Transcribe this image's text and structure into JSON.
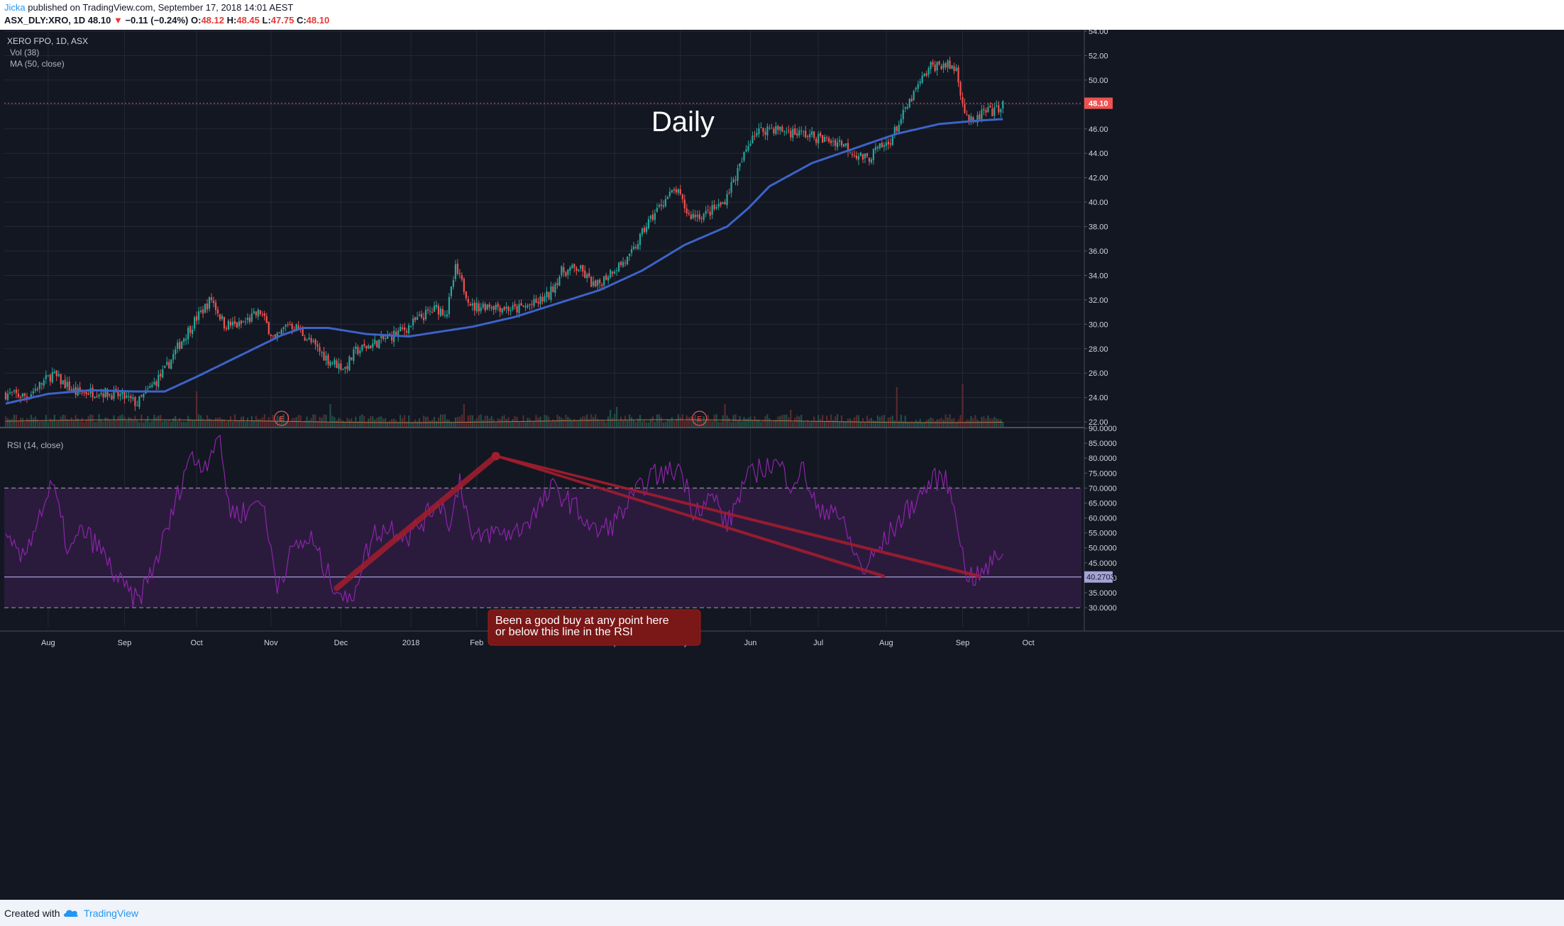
{
  "header": {
    "author": "Jicka",
    "published": "published on TradingView.com, September 17, 2018 14:01 AEST",
    "symbol": "ASX_DLY:XRO, 1D",
    "last": "48.10",
    "change": "−0.11 (−0.24%)",
    "open_label": "O:",
    "open": "48.12",
    "high_label": "H:",
    "high": "48.45",
    "low_label": "L:",
    "low": "47.75",
    "close_label": "C:",
    "close": "48.10"
  },
  "legend": {
    "title": "XERO FPO, 1D, ASX",
    "vol": "Vol (38)",
    "ma": "MA (50, close)",
    "rsi": "RSI (14, close)"
  },
  "annotation": {
    "big_label": "Daily",
    "callout_line1": "Been a good buy at any point here",
    "callout_line2": "or below this line in the RSI"
  },
  "footer": {
    "created_with": "Created with",
    "brand": "TradingView"
  },
  "colors": {
    "background": "#131722",
    "up": "#26a69a",
    "down": "#ef5350",
    "ma": "#3d63c7",
    "rsi": "#8e24aa",
    "rsi_band": "#2a1b3d",
    "callout": "#8b1a1a"
  },
  "chart_data": {
    "type": "candlestick",
    "price_axis": {
      "ticks": [
        "54.00",
        "52.00",
        "50.00",
        "48.00",
        "46.00",
        "44.00",
        "42.00",
        "40.00",
        "38.00",
        "36.00",
        "34.00",
        "32.00",
        "30.00",
        "28.00",
        "26.00",
        "24.00",
        "22.00"
      ],
      "ylim": [
        21.6,
        54.0
      ],
      "last_price_label": "48.10"
    },
    "rsi_axis": {
      "ticks": [
        "90.0000",
        "85.0000",
        "80.0000",
        "75.0000",
        "70.0000",
        "65.0000",
        "60.0000",
        "55.0000",
        "50.0000",
        "45.0000",
        "40.0000",
        "35.0000",
        "30.0000"
      ],
      "ylim": [
        29.3,
        90.0
      ],
      "last_value_label": "40.2703",
      "overbought": 70,
      "oversold": 30,
      "annotation_level": 40.27
    },
    "time_axis": [
      "Aug",
      "Sep",
      "Oct",
      "Nov",
      "Dec",
      "2018",
      "Feb",
      "Mar",
      "Apr",
      "May",
      "Jun",
      "Jul",
      "Aug",
      "Sep",
      "Oct"
    ],
    "earnings_markers": [
      {
        "label": "E",
        "month": "Nov"
      },
      {
        "label": "E",
        "month": "May"
      }
    ],
    "price_keypoints": [
      [
        0,
        24.3
      ],
      [
        10,
        24.1
      ],
      [
        22,
        25.9
      ],
      [
        33,
        24.4
      ],
      [
        44,
        24.5
      ],
      [
        55,
        24.1
      ],
      [
        62,
        23.5
      ],
      [
        75,
        26.2
      ],
      [
        83,
        28.7
      ],
      [
        90,
        30.5
      ],
      [
        97,
        32.1
      ],
      [
        103,
        30.0
      ],
      [
        110,
        29.9
      ],
      [
        120,
        31.0
      ],
      [
        127,
        28.6
      ],
      [
        133,
        30.1
      ],
      [
        138,
        29.6
      ],
      [
        145,
        28.3
      ],
      [
        152,
        27.1
      ],
      [
        160,
        26.4
      ],
      [
        165,
        27.8
      ],
      [
        172,
        28.3
      ],
      [
        180,
        28.9
      ],
      [
        188,
        29.6
      ],
      [
        196,
        30.6
      ],
      [
        203,
        31.3
      ],
      [
        208,
        31.0
      ],
      [
        212,
        34.5
      ],
      [
        220,
        31.4
      ],
      [
        228,
        31.6
      ],
      [
        240,
        31.2
      ],
      [
        250,
        31.7
      ],
      [
        256,
        32.4
      ],
      [
        262,
        34.3
      ],
      [
        270,
        34.6
      ],
      [
        278,
        33.0
      ],
      [
        286,
        34.5
      ],
      [
        294,
        35.4
      ],
      [
        302,
        38.1
      ],
      [
        310,
        40.1
      ],
      [
        316,
        41.0
      ],
      [
        322,
        38.9
      ],
      [
        330,
        39.0
      ],
      [
        338,
        39.9
      ],
      [
        346,
        42.9
      ],
      [
        352,
        45.6
      ],
      [
        360,
        46.1
      ],
      [
        368,
        45.8
      ],
      [
        376,
        45.6
      ],
      [
        386,
        45.1
      ],
      [
        394,
        44.9
      ],
      [
        400,
        44.0
      ],
      [
        406,
        43.5
      ],
      [
        410,
        44.2
      ],
      [
        416,
        44.8
      ],
      [
        422,
        46.8
      ],
      [
        430,
        49.5
      ],
      [
        436,
        51.1
      ],
      [
        442,
        51.3
      ],
      [
        448,
        50.9
      ],
      [
        452,
        47.4
      ],
      [
        456,
        46.3
      ],
      [
        460,
        47.3
      ],
      [
        466,
        47.4
      ],
      [
        470,
        48.1
      ]
    ],
    "ma50_keypoints": [
      [
        0,
        23.5
      ],
      [
        20,
        24.3
      ],
      [
        40,
        24.6
      ],
      [
        60,
        24.5
      ],
      [
        75,
        24.5
      ],
      [
        90,
        25.7
      ],
      [
        110,
        27.4
      ],
      [
        130,
        29.1
      ],
      [
        140,
        29.7
      ],
      [
        152,
        29.7
      ],
      [
        170,
        29.2
      ],
      [
        190,
        29.0
      ],
      [
        205,
        29.4
      ],
      [
        220,
        29.8
      ],
      [
        240,
        30.6
      ],
      [
        260,
        31.7
      ],
      [
        280,
        32.8
      ],
      [
        300,
        34.4
      ],
      [
        320,
        36.5
      ],
      [
        340,
        38.0
      ],
      [
        350,
        39.5
      ],
      [
        360,
        41.3
      ],
      [
        380,
        43.2
      ],
      [
        400,
        44.4
      ],
      [
        420,
        45.6
      ],
      [
        440,
        46.4
      ],
      [
        460,
        46.7
      ],
      [
        470,
        46.8
      ]
    ],
    "rsi_keypoints": [
      [
        0,
        52
      ],
      [
        8,
        46
      ],
      [
        14,
        58
      ],
      [
        22,
        71
      ],
      [
        30,
        48
      ],
      [
        36,
        56
      ],
      [
        44,
        50
      ],
      [
        54,
        38
      ],
      [
        62,
        32
      ],
      [
        70,
        44
      ],
      [
        78,
        60
      ],
      [
        86,
        80
      ],
      [
        94,
        78
      ],
      [
        100,
        88
      ],
      [
        106,
        62
      ],
      [
        114,
        62
      ],
      [
        120,
        68
      ],
      [
        128,
        38
      ],
      [
        136,
        50
      ],
      [
        144,
        53
      ],
      [
        150,
        43
      ],
      [
        156,
        37
      ],
      [
        162,
        31
      ],
      [
        168,
        45
      ],
      [
        174,
        55
      ],
      [
        182,
        57
      ],
      [
        190,
        54
      ],
      [
        198,
        60
      ],
      [
        204,
        66
      ],
      [
        210,
        58
      ],
      [
        214,
        74
      ],
      [
        220,
        52
      ],
      [
        228,
        55
      ],
      [
        240,
        55
      ],
      [
        250,
        62
      ],
      [
        258,
        70
      ],
      [
        268,
        64
      ],
      [
        278,
        55
      ],
      [
        286,
        58
      ],
      [
        296,
        67
      ],
      [
        304,
        74
      ],
      [
        312,
        75
      ],
      [
        318,
        77
      ],
      [
        324,
        63
      ],
      [
        334,
        67
      ],
      [
        340,
        57
      ],
      [
        348,
        72
      ],
      [
        356,
        77
      ],
      [
        364,
        78
      ],
      [
        370,
        72
      ],
      [
        376,
        76
      ],
      [
        384,
        60
      ],
      [
        390,
        65
      ],
      [
        398,
        52
      ],
      [
        404,
        42
      ],
      [
        412,
        50
      ],
      [
        420,
        58
      ],
      [
        428,
        65
      ],
      [
        436,
        72
      ],
      [
        442,
        74
      ],
      [
        448,
        63
      ],
      [
        452,
        42
      ],
      [
        458,
        40
      ],
      [
        464,
        44
      ],
      [
        470,
        50
      ]
    ]
  }
}
